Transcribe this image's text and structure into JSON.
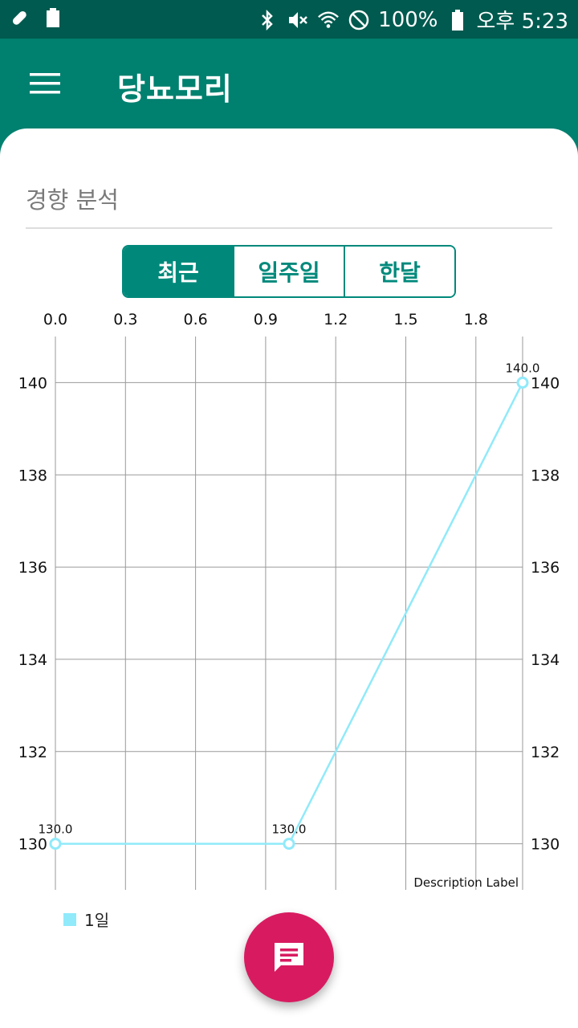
{
  "status_bar": {
    "battery": "100%",
    "time": "오후 5:23",
    "left_icons": [
      "pill-icon",
      "battery-small-icon"
    ],
    "right_icons": [
      "bluetooth-icon",
      "mute-icon",
      "wifi-icon",
      "dnd-icon",
      "battery-icon"
    ]
  },
  "app_bar": {
    "title": "당뇨모리"
  },
  "section": {
    "title": "경향 분석"
  },
  "segments": [
    {
      "label": "최근",
      "active": true
    },
    {
      "label": "일주일",
      "active": false
    },
    {
      "label": "한달",
      "active": false
    }
  ],
  "chart_data": {
    "type": "line",
    "x": [
      0,
      1,
      2
    ],
    "series": [
      {
        "name": "1일",
        "values": [
          130.0,
          130.0,
          140.0
        ],
        "color": "#90eafa"
      }
    ],
    "x_ticks": [
      "0.0",
      "0.3",
      "0.6",
      "0.9",
      "1.2",
      "1.5",
      "1.8"
    ],
    "y_ticks": [
      "130",
      "132",
      "134",
      "136",
      "138",
      "140"
    ],
    "data_labels": [
      "130.0",
      "130.0",
      "140.0"
    ],
    "xlim": [
      0,
      2.0
    ],
    "ylim": [
      129,
      141
    ],
    "grid": true,
    "description": "Description Label",
    "legend": "bottom-left"
  },
  "fab": {
    "icon": "message-icon"
  }
}
